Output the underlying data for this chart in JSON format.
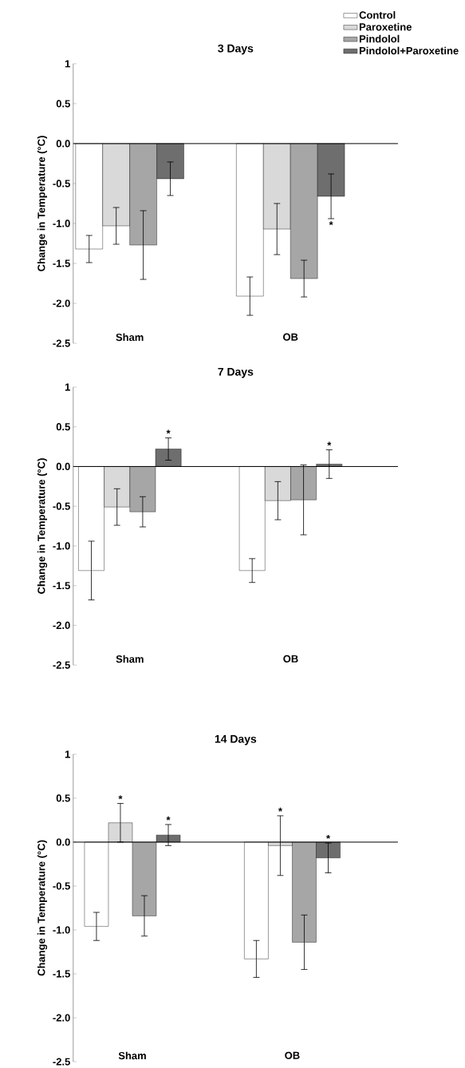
{
  "chart_data": [
    {
      "type": "bar",
      "title": "3 Days",
      "ylabel": "Change in Temperature (°C)",
      "categories": [
        "Sham",
        "OB"
      ],
      "series": [
        {
          "name": "Control",
          "color": "#ffffff",
          "values": [
            -1.32,
            -1.91
          ],
          "errors": [
            0.17,
            0.24
          ]
        },
        {
          "name": "Paroxetine",
          "color": "#d9d9d9",
          "values": [
            -1.03,
            -1.07
          ],
          "errors": [
            0.23,
            0.32
          ]
        },
        {
          "name": "Pindolol",
          "color": "#a6a6a6",
          "values": [
            -1.27,
            -1.69
          ],
          "errors": [
            0.43,
            0.23
          ]
        },
        {
          "name": "Pindolol+Paroxetine",
          "color": "#6e6e6e",
          "values": [
            -0.44,
            -0.66
          ],
          "errors": [
            0.21,
            0.28
          ],
          "value_labels": [
            null,
            "*"
          ]
        }
      ],
      "ylim": [
        -2.5,
        1
      ],
      "yticks": [
        {
          "value": -2.5,
          "label": "-2.5"
        },
        {
          "value": -2.0,
          "label": "-2.0"
        },
        {
          "value": -1.5,
          "label": "-1.5"
        },
        {
          "value": -1.0,
          "label": "-1.0"
        },
        {
          "value": -0.5,
          "label": "-0.5"
        },
        {
          "value": 0,
          "label": "0.0"
        },
        {
          "value": 0.5,
          "label": "0.5"
        },
        {
          "value": 1,
          "label": "1"
        }
      ],
      "ref_lines": [
        {
          "axis": "y",
          "value": 0
        }
      ],
      "legend": "top right"
    },
    {
      "type": "bar",
      "title": "7 Days",
      "ylabel": "Change in Temperature (°C)",
      "categories": [
        "Sham",
        "OB"
      ],
      "series": [
        {
          "color": "#ffffff",
          "values": [
            -1.31,
            -1.31
          ],
          "errors": [
            0.37,
            0.15
          ]
        },
        {
          "color": "#d9d9d9",
          "values": [
            -0.51,
            -0.43
          ],
          "errors": [
            0.23,
            0.24
          ]
        },
        {
          "color": "#a6a6a6",
          "values": [
            -0.57,
            -0.42
          ],
          "errors": [
            0.19,
            0.44
          ]
        },
        {
          "color": "#6e6e6e",
          "values": [
            0.22,
            0.03
          ],
          "errors": [
            0.14,
            0.18
          ],
          "value_labels": [
            "*",
            "*"
          ]
        }
      ],
      "ylim": [
        -2.5,
        1
      ],
      "yticks": [
        {
          "value": -2.5,
          "label": "-2.5"
        },
        {
          "value": -2.0,
          "label": "-2.0"
        },
        {
          "value": -1.5,
          "label": "-1.5"
        },
        {
          "value": -1.0,
          "label": "-1.0"
        },
        {
          "value": -0.5,
          "label": "-0.5"
        },
        {
          "value": 0,
          "label": "0.0"
        },
        {
          "value": 0.5,
          "label": "0.5"
        },
        {
          "value": 1,
          "label": "1"
        }
      ],
      "ref_lines": [
        {
          "axis": "y",
          "value": 0
        }
      ]
    },
    {
      "type": "bar",
      "title": "14 Days",
      "ylabel": "Change in Temperature (°C)",
      "categories": [
        "Sham",
        "OB"
      ],
      "series": [
        {
          "color": "#ffffff",
          "values": [
            -0.96,
            -1.33
          ],
          "errors": [
            0.16,
            0.21
          ]
        },
        {
          "color": "#d9d9d9",
          "values": [
            0.22,
            -0.04
          ],
          "errors": [
            0.22,
            0.34
          ],
          "value_labels": [
            "*",
            "*"
          ]
        },
        {
          "color": "#a6a6a6",
          "values": [
            -0.84,
            -1.14
          ],
          "errors": [
            0.23,
            0.31
          ]
        },
        {
          "color": "#6e6e6e",
          "values": [
            0.08,
            -0.18
          ],
          "errors": [
            0.12,
            0.17
          ],
          "value_labels": [
            "*",
            "*"
          ]
        }
      ],
      "ylim": [
        -2.5,
        1
      ],
      "yticks": [
        {
          "value": -2.5,
          "label": "-2.5"
        },
        {
          "value": -2.0,
          "label": "-2.0"
        },
        {
          "value": -1.5,
          "label": "-1.5"
        },
        {
          "value": -1.0,
          "label": "-1.0"
        },
        {
          "value": -0.5,
          "label": "-0.5"
        },
        {
          "value": 0,
          "label": "0.0"
        },
        {
          "value": 0.5,
          "label": "0.5"
        },
        {
          "value": 1,
          "label": "1"
        }
      ],
      "ref_lines": [
        {
          "axis": "y",
          "value": 0
        }
      ]
    }
  ]
}
